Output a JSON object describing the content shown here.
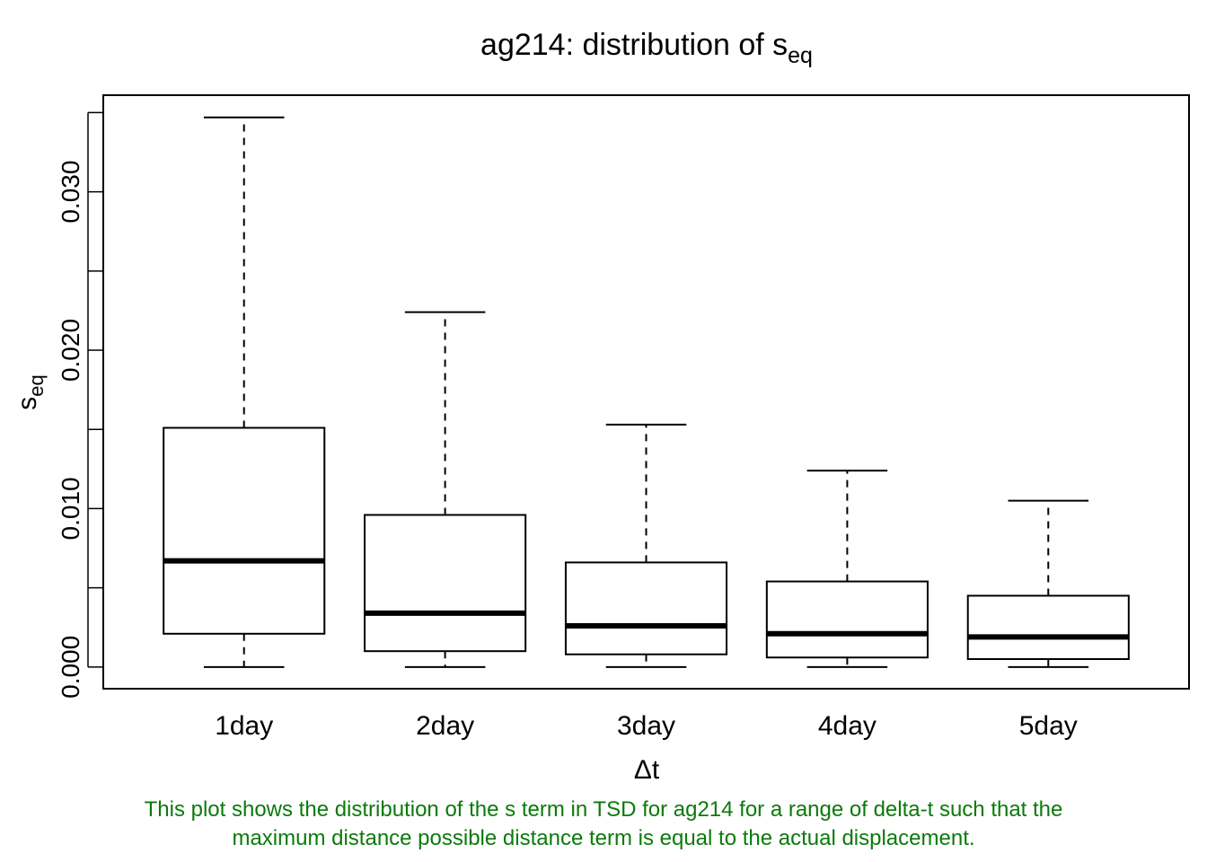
{
  "chart_data": {
    "type": "boxplot",
    "title": {
      "text": "ag214: distribution of s",
      "subscript": "eq"
    },
    "xlabel": "Δt",
    "ylabel": {
      "text": "s",
      "subscript": "eq"
    },
    "categories": [
      "1day",
      "2day",
      "3day",
      "4day",
      "5day"
    ],
    "boxes": [
      {
        "category": "1day",
        "min": 0.0,
        "q1": 0.0021,
        "median": 0.0067,
        "q3": 0.0151,
        "max": 0.0347
      },
      {
        "category": "2day",
        "min": 0.0,
        "q1": 0.001,
        "median": 0.0034,
        "q3": 0.0096,
        "max": 0.0224
      },
      {
        "category": "3day",
        "min": 0.0,
        "q1": 0.0008,
        "median": 0.0026,
        "q3": 0.0066,
        "max": 0.0153
      },
      {
        "category": "4day",
        "min": 0.0,
        "q1": 0.0006,
        "median": 0.0021,
        "q3": 0.0054,
        "max": 0.0124
      },
      {
        "category": "5day",
        "min": 0.0,
        "q1": 0.0005,
        "median": 0.0019,
        "q3": 0.0045,
        "max": 0.0105
      }
    ],
    "ylim": [
      -0.00137,
      0.0361
    ],
    "yticks": [
      0.0,
      0.005,
      0.01,
      0.015,
      0.02,
      0.025,
      0.03,
      0.035
    ],
    "ytick_labels": [
      "0.000",
      "",
      "0.010",
      "",
      "0.020",
      "",
      "0.030",
      ""
    ],
    "grid": false,
    "legend": "none"
  },
  "caption": {
    "line1": "This plot shows the distribution of the s term in TSD for ag214 for a range of delta-t such that the",
    "line2": "maximum distance possible distance term is equal to the actual displacement.",
    "color": "#0b7a0b"
  }
}
